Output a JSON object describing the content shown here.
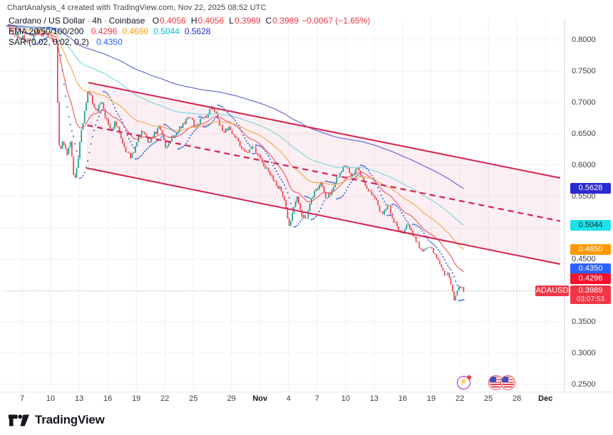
{
  "header": {
    "title": "ChartAnalysis_4 created with TradingView.com, Nov 22, 2025 08:52 UTC"
  },
  "legend": {
    "title_parts": [
      "Cardano / US Dollar",
      "4h",
      "Coinbase"
    ],
    "separator": "·",
    "ohlc": [
      {
        "k": "O",
        "v": "0.4056"
      },
      {
        "k": "H",
        "v": "0.4056"
      },
      {
        "k": "L",
        "v": "0.3969"
      },
      {
        "k": "C",
        "v": "0.3989"
      }
    ],
    "change": "−0.0067 (−1.65%)",
    "ohlc_color": "#f23645",
    "ema_label": "EMA 20/50/100/200",
    "ema_values": [
      {
        "text": "0.4296",
        "color": "#f23645"
      },
      {
        "text": "0.4650",
        "color": "#ff9800"
      },
      {
        "text": "0.5044",
        "color": "#00c5d4"
      },
      {
        "text": "0.5628",
        "color": "#2a2ad5"
      }
    ],
    "sar_label": "SAR (0.02, 0.02, 0.2)",
    "sar_value": {
      "text": "0.4350",
      "color": "#2962ff"
    }
  },
  "price_axis": {
    "ticks": [
      {
        "label": "0.8000",
        "price": 0.8
      },
      {
        "label": "0.7500",
        "price": 0.75
      },
      {
        "label": "0.7000",
        "price": 0.7
      },
      {
        "label": "0.6500",
        "price": 0.65
      },
      {
        "label": "0.6000",
        "price": 0.6
      },
      {
        "label": "0.5500",
        "price": 0.55
      },
      {
        "label": "0.5000",
        "price": 0.5
      },
      {
        "label": "0.4500",
        "price": 0.45
      },
      {
        "label": "0.3500",
        "price": 0.35
      },
      {
        "label": "0.3000",
        "price": 0.3
      },
      {
        "label": "0.2500",
        "price": 0.25
      }
    ],
    "badges": [
      {
        "name": "ema200-badge",
        "label": "0.5628",
        "price": 0.5628,
        "bg": "#2a2ad5",
        "fg": "#ffffff"
      },
      {
        "name": "ema100-badge",
        "label": "0.5044",
        "price": 0.5044,
        "bg": "#1ee1e9",
        "fg": "#073538"
      },
      {
        "name": "ema50-badge",
        "label": "0.4650",
        "price": 0.465,
        "bg": "#ff9800",
        "fg": "#ffffff"
      },
      {
        "name": "sar-badge",
        "label": "0.4350",
        "price": 0.435,
        "bg": "#2962ff",
        "fg": "#ffffff"
      },
      {
        "name": "ema20-badge",
        "label": "0.4296",
        "price": 0.4296,
        "bg": "#f5122d",
        "fg": "#ffffff"
      }
    ],
    "last_price": {
      "symbol": "ADAUSD",
      "price": "0.3989",
      "countdown": "03:07:53",
      "bg": "#f23645",
      "fg": "#ffffff",
      "value": 0.3989
    }
  },
  "time_axis": {
    "ticks": [
      {
        "label": "7",
        "day": 0
      },
      {
        "label": "10",
        "day": 3
      },
      {
        "label": "13",
        "day": 6
      },
      {
        "label": "16",
        "day": 9
      },
      {
        "label": "19",
        "day": 12
      },
      {
        "label": "22",
        "day": 15
      },
      {
        "label": "25",
        "day": 18
      },
      {
        "label": "29",
        "day": 22
      },
      {
        "label": "Nov",
        "day": 25,
        "bold": true
      },
      {
        "label": "4",
        "day": 28
      },
      {
        "label": "7",
        "day": 31
      },
      {
        "label": "10",
        "day": 34
      },
      {
        "label": "13",
        "day": 37
      },
      {
        "label": "16",
        "day": 40
      },
      {
        "label": "19",
        "day": 43
      },
      {
        "label": "22",
        "day": 46
      },
      {
        "label": "25",
        "day": 49
      },
      {
        "label": "28",
        "day": 52
      },
      {
        "label": "Dec",
        "day": 55,
        "bold": true
      }
    ]
  },
  "events": {
    "lightning": {
      "day": 46.45,
      "glyph": "⚡",
      "ring": "#9c27b0",
      "dot": "#f23645"
    },
    "flags": [
      {
        "day": 49.8
      },
      {
        "day": 51.1
      }
    ]
  },
  "footer": {
    "brand": "TradingView"
  },
  "chart_data": {
    "type": "candlestick",
    "symbol": "ADAUSD",
    "title": "Cardano / US Dollar",
    "interval": "4h",
    "exchange": "Coinbase",
    "last_bar": {
      "open": 0.4056,
      "high": 0.4056,
      "low": 0.3969,
      "close": 0.3989,
      "change": -0.0067,
      "change_pct": -1.65
    },
    "x_axis": {
      "start": "Oct 7",
      "end": "Dec",
      "unit": "day",
      "bars_per_day": 6
    },
    "y_axis": {
      "min": 0.2409,
      "max": 0.8318,
      "grid_step": 0.05
    },
    "colors": {
      "up": "#089981",
      "down": "#f23645",
      "grid": "#eef0f5",
      "last_price_line": "#9a9daa"
    },
    "indicators": {
      "ema": {
        "periods": [
          20,
          50,
          100,
          200
        ],
        "values": [
          0.4296,
          0.465,
          0.5044,
          0.5628
        ],
        "line_colors": [
          "#f0565f",
          "#f3a74e",
          "#7bd4dc",
          "#5b63d3"
        ]
      },
      "sar": {
        "step": 0.02,
        "max": 0.2,
        "value": 0.435,
        "dot_color": "#2c5bdd"
      }
    },
    "channel": {
      "color": "#d4224e",
      "fill": "rgba(212,34,78,0.07)",
      "upper": {
        "d1": 6.97,
        "p1": 0.7318,
        "d2": 56.55,
        "p2": 0.5795
      },
      "lower": {
        "d1": 6.74,
        "p1": 0.5955,
        "d2": 56.55,
        "p2": 0.442
      },
      "mid_dashed": true
    },
    "price_path": [
      [
        -1.6,
        0.822
      ],
      [
        -0.8,
        0.808
      ],
      [
        0,
        0.803
      ],
      [
        0.8,
        0.798
      ],
      [
        1.6,
        0.816
      ],
      [
        2.4,
        0.806
      ],
      [
        3.0,
        0.8
      ],
      [
        3.6,
        0.795
      ],
      [
        3.8,
        0.655
      ],
      [
        3.95,
        0.615
      ],
      [
        4.3,
        0.638
      ],
      [
        4.7,
        0.615
      ],
      [
        5.1,
        0.64
      ],
      [
        5.5,
        0.57
      ],
      [
        5.8,
        0.6
      ],
      [
        6.2,
        0.65
      ],
      [
        6.6,
        0.69
      ],
      [
        7.0,
        0.722
      ],
      [
        7.4,
        0.7
      ],
      [
        7.8,
        0.685
      ],
      [
        8.3,
        0.703
      ],
      [
        8.8,
        0.675
      ],
      [
        9.3,
        0.655
      ],
      [
        9.8,
        0.668
      ],
      [
        10.3,
        0.648
      ],
      [
        10.9,
        0.622
      ],
      [
        11.5,
        0.613
      ],
      [
        12.1,
        0.64
      ],
      [
        12.7,
        0.658
      ],
      [
        13.3,
        0.636
      ],
      [
        13.9,
        0.65
      ],
      [
        14.5,
        0.66
      ],
      [
        15.1,
        0.63
      ],
      [
        15.7,
        0.642
      ],
      [
        16.3,
        0.655
      ],
      [
        17.0,
        0.668
      ],
      [
        17.6,
        0.68
      ],
      [
        18.2,
        0.66
      ],
      [
        18.8,
        0.672
      ],
      [
        19.4,
        0.68
      ],
      [
        20.0,
        0.693
      ],
      [
        20.6,
        0.672
      ],
      [
        21.2,
        0.652
      ],
      [
        21.8,
        0.66
      ],
      [
        22.4,
        0.646
      ],
      [
        23.0,
        0.63
      ],
      [
        23.6,
        0.618
      ],
      [
        24.2,
        0.632
      ],
      [
        24.8,
        0.615
      ],
      [
        25.4,
        0.6
      ],
      [
        26.0,
        0.588
      ],
      [
        26.6,
        0.57
      ],
      [
        27.2,
        0.56
      ],
      [
        27.7,
        0.537
      ],
      [
        28.1,
        0.498
      ],
      [
        28.5,
        0.53
      ],
      [
        28.9,
        0.548
      ],
      [
        29.4,
        0.52
      ],
      [
        29.9,
        0.513
      ],
      [
        30.4,
        0.548
      ],
      [
        30.9,
        0.56
      ],
      [
        31.4,
        0.572
      ],
      [
        31.9,
        0.548
      ],
      [
        32.4,
        0.556
      ],
      [
        32.9,
        0.572
      ],
      [
        33.4,
        0.588
      ],
      [
        33.9,
        0.6
      ],
      [
        34.3,
        0.592
      ],
      [
        34.7,
        0.582
      ],
      [
        35.1,
        0.596
      ],
      [
        35.5,
        0.588
      ],
      [
        36.0,
        0.57
      ],
      [
        36.5,
        0.56
      ],
      [
        37.0,
        0.552
      ],
      [
        37.5,
        0.53
      ],
      [
        38.0,
        0.522
      ],
      [
        38.5,
        0.538
      ],
      [
        39.0,
        0.512
      ],
      [
        39.5,
        0.5
      ],
      [
        40.0,
        0.492
      ],
      [
        40.5,
        0.505
      ],
      [
        41.0,
        0.49
      ],
      [
        41.5,
        0.478
      ],
      [
        42.0,
        0.462
      ],
      [
        42.5,
        0.47
      ],
      [
        43.0,
        0.468
      ],
      [
        43.5,
        0.452
      ],
      [
        44.0,
        0.44
      ],
      [
        44.4,
        0.425
      ],
      [
        44.8,
        0.428
      ],
      [
        45.1,
        0.405
      ],
      [
        45.4,
        0.385
      ],
      [
        45.7,
        0.398
      ],
      [
        46.0,
        0.408
      ],
      [
        46.2,
        0.403
      ],
      [
        46.5,
        0.3989
      ]
    ]
  }
}
